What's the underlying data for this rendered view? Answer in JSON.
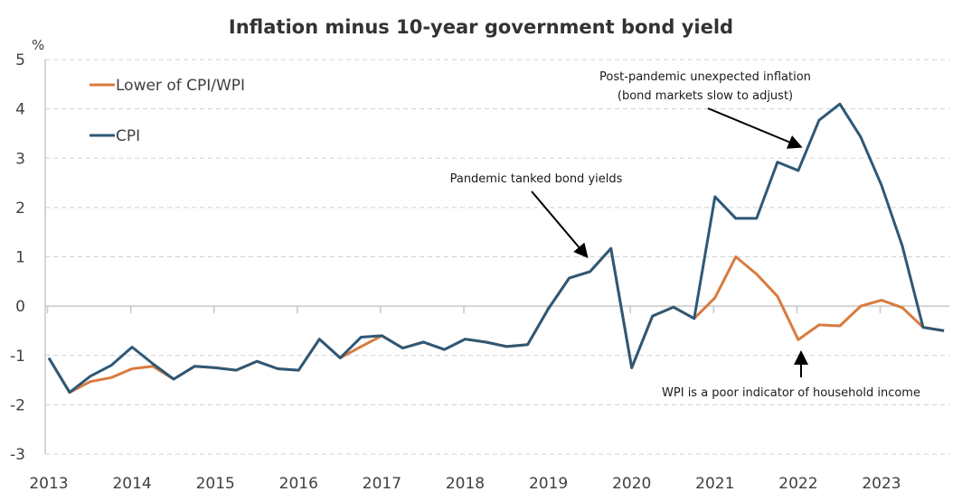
{
  "chart_data": {
    "type": "line",
    "title": "Inflation minus 10-year government bond yield",
    "ylabel": "%",
    "xlabel": "",
    "ylim": [
      -3,
      5
    ],
    "yticks": [
      5,
      4,
      3,
      2,
      1,
      0,
      -1,
      -2,
      -3
    ],
    "xlim": [
      2013.0,
      2023.92
    ],
    "xticks": [
      "2013",
      "2014",
      "2015",
      "2016",
      "2017",
      "2018",
      "2019",
      "2020",
      "2021",
      "2022",
      "2023"
    ],
    "grid": "horizontal dashed",
    "legend_position": "top-left",
    "x": [
      2013.0,
      2013.25,
      2013.5,
      2013.75,
      2014.0,
      2014.25,
      2014.5,
      2014.75,
      2015.0,
      2015.25,
      2015.5,
      2015.75,
      2016.0,
      2016.25,
      2016.5,
      2016.75,
      2017.0,
      2017.25,
      2017.5,
      2017.75,
      2018.0,
      2018.25,
      2018.5,
      2018.75,
      2019.0,
      2019.25,
      2019.5,
      2019.75,
      2020.0,
      2020.25,
      2020.5,
      2020.75,
      2021.0,
      2021.25,
      2021.5,
      2021.75,
      2022.0,
      2022.25,
      2022.5,
      2022.75,
      2023.0,
      2023.25,
      2023.5,
      2023.75
    ],
    "series": [
      {
        "name": "Lower of CPI/WPI",
        "color": "#D97B3E",
        "values": [
          -1.05,
          -1.75,
          -1.53,
          -1.45,
          -1.27,
          -1.22,
          -1.48,
          -1.22,
          -1.25,
          -1.3,
          -1.12,
          -1.27,
          -1.3,
          -0.67,
          -1.05,
          -0.82,
          -0.6,
          -0.85,
          -0.73,
          -0.88,
          -0.67,
          -0.73,
          -0.82,
          -0.78,
          -0.05,
          0.57,
          0.7,
          1.17,
          -1.25,
          -0.2,
          -0.02,
          -0.25,
          0.17,
          1.0,
          0.65,
          0.2,
          -0.68,
          -0.38,
          -0.4,
          0.0,
          0.12,
          -0.03,
          -0.43,
          -0.5
        ]
      },
      {
        "name": "CPI",
        "color": "#2E5877",
        "values": [
          -1.05,
          -1.75,
          -1.42,
          -1.2,
          -0.83,
          -1.17,
          -1.48,
          -1.22,
          -1.25,
          -1.3,
          -1.12,
          -1.27,
          -1.3,
          -0.67,
          -1.05,
          -0.63,
          -0.6,
          -0.85,
          -0.73,
          -0.88,
          -0.67,
          -0.73,
          -0.82,
          -0.78,
          -0.05,
          0.57,
          0.7,
          1.17,
          -1.25,
          -0.2,
          -0.02,
          -0.25,
          2.22,
          1.78,
          1.78,
          2.92,
          2.75,
          3.77,
          4.1,
          3.43,
          2.45,
          1.22,
          -0.43,
          -0.5
        ]
      }
    ],
    "annotations": [
      {
        "lines": [
          "Pandemic tanked bond yields"
        ],
        "arrow_to": {
          "x": 2019.55,
          "y": 1.0
        }
      },
      {
        "lines": [
          "Post-pandemic unexpected inflation",
          "(bond markets slow to adjust)"
        ],
        "arrow_to": {
          "x": 2022.05,
          "y": 3.2
        }
      },
      {
        "lines": [
          "WPI is a poor indicator of household income"
        ],
        "arrow_to": {
          "x": 2022.05,
          "y": -0.85
        }
      }
    ]
  }
}
